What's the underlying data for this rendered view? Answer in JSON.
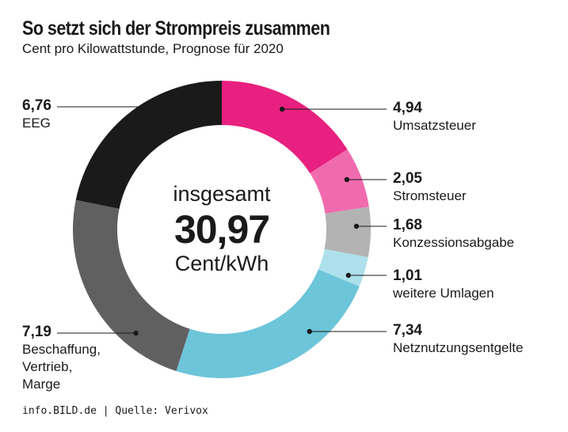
{
  "title": "So setzt sich der Strompreis zusammen",
  "subtitle": "Cent pro Kilowattstunde, Prognose für 2020",
  "center": {
    "line1": "insgesamt",
    "total": "30,97",
    "unit": "Cent/kWh"
  },
  "footer": "info.BILD.de | Quelle: Verivox",
  "chart_data": {
    "type": "pie",
    "subtype": "donut",
    "title": "So setzt sich der Strompreis zusammen",
    "subtitle": "Cent pro Kilowattstunde, Prognose für 2020",
    "total": 30.97,
    "categories": [
      "Umsatzsteuer",
      "Stromsteuer",
      "Konzessionsabgabe",
      "weitere Umlagen",
      "Netznutzungsentgelte",
      "Beschaffung, Vertrieb, Marge",
      "EEG"
    ],
    "values": [
      4.94,
      2.05,
      1.68,
      1.01,
      7.34,
      7.19,
      6.76
    ],
    "value_labels": [
      "4,94",
      "2,05",
      "1,68",
      "1,01",
      "7,34",
      "7,19",
      "6,76"
    ],
    "colors": [
      "#e8207f",
      "#f06aae",
      "#b3b3b3",
      "#ade0ea",
      "#6cc5d9",
      "#606060",
      "#1a1a1a"
    ],
    "legend": "none"
  }
}
